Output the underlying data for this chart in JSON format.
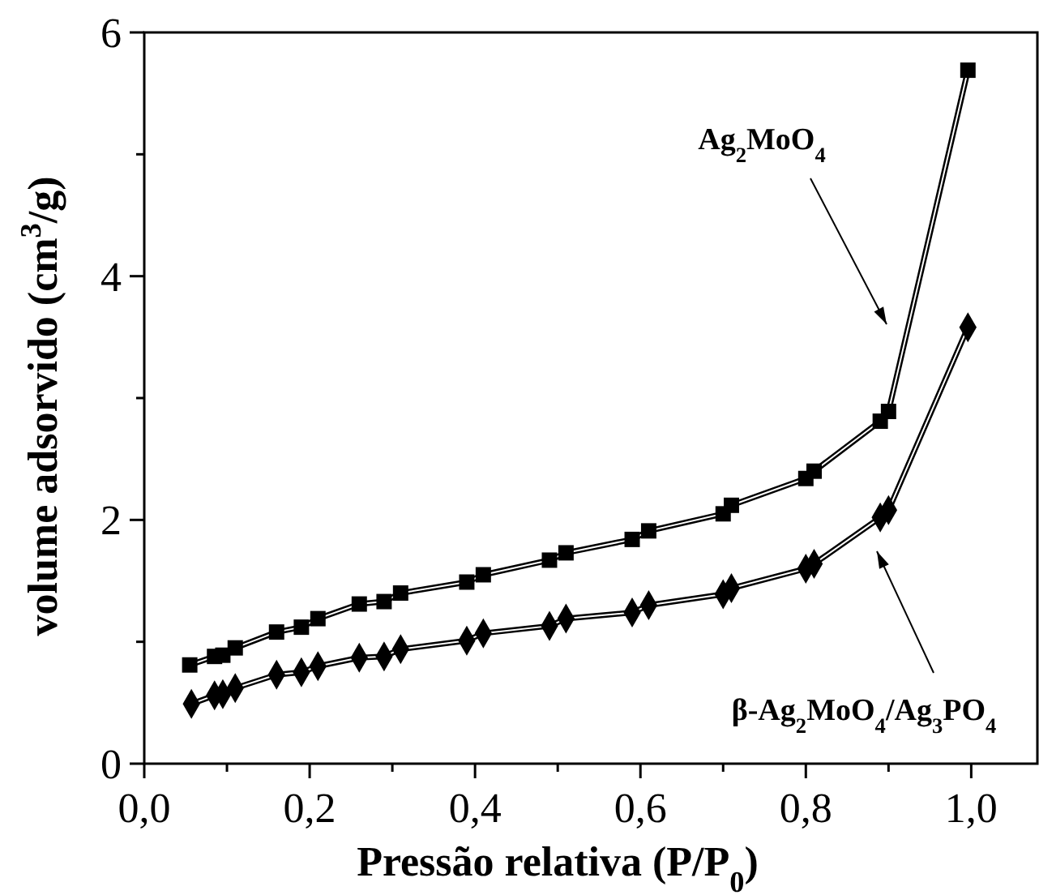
{
  "chart_data": {
    "type": "line",
    "xlabel": "Pressão relativa (P/P$_{0}$)",
    "ylabel": "volume adsorvido (cm$^{3}$/g)",
    "xlim": [
      0,
      1.08
    ],
    "ylim": [
      0,
      6
    ],
    "xticks": [
      {
        "value": 0,
        "label": "0,0"
      },
      {
        "value": 0.1,
        "label": null
      },
      {
        "value": 0.2,
        "label": "0,2"
      },
      {
        "value": 0.3,
        "label": null
      },
      {
        "value": 0.4,
        "label": "0,4"
      },
      {
        "value": 0.5,
        "label": null
      },
      {
        "value": 0.6,
        "label": "0,6"
      },
      {
        "value": 0.7,
        "label": null
      },
      {
        "value": 0.8,
        "label": "0,8"
      },
      {
        "value": 0.9,
        "label": null
      },
      {
        "value": 1.0,
        "label": "1,0"
      }
    ],
    "yticks": [
      0,
      {
        "value": 1,
        "label": null
      },
      2,
      {
        "value": 3,
        "label": null
      },
      4,
      {
        "value": 5,
        "label": null
      },
      6
    ],
    "grid": false,
    "line_style": "solid",
    "series": [
      {
        "color": "#000000",
        "marker": "square",
        "x": [
          0.055,
          0.085,
          0.095,
          0.11,
          0.16,
          0.19,
          0.21,
          0.26,
          0.29,
          0.31,
          0.39,
          0.41,
          0.49,
          0.51,
          0.59,
          0.61,
          0.7,
          0.71,
          0.8,
          0.81,
          0.89,
          0.9,
          0.996
        ],
        "values": [
          0.81,
          0.88,
          0.89,
          0.95,
          1.08,
          1.12,
          1.19,
          1.31,
          1.33,
          1.4,
          1.49,
          1.55,
          1.67,
          1.73,
          1.84,
          1.91,
          2.05,
          2.12,
          2.34,
          2.4,
          2.81,
          2.89,
          5.69
        ]
      },
      {
        "color": "#000000",
        "marker": "diamond",
        "x": [
          0.057,
          0.085,
          0.095,
          0.11,
          0.16,
          0.19,
          0.21,
          0.26,
          0.29,
          0.31,
          0.39,
          0.41,
          0.49,
          0.51,
          0.59,
          0.61,
          0.7,
          0.71,
          0.8,
          0.81,
          0.89,
          0.9,
          0.996
        ],
        "values": [
          0.49,
          0.56,
          0.57,
          0.62,
          0.73,
          0.75,
          0.8,
          0.87,
          0.88,
          0.94,
          1.01,
          1.07,
          1.13,
          1.19,
          1.24,
          1.3,
          1.39,
          1.44,
          1.6,
          1.64,
          2.02,
          2.08,
          3.58
        ]
      }
    ],
    "annotations": [
      "Ag$_{2}$MoO$_{4}$",
      "β-Ag$_{2}$MoO$_{4}$/Ag$_{3}$PO$_{4}$"
    ]
  }
}
